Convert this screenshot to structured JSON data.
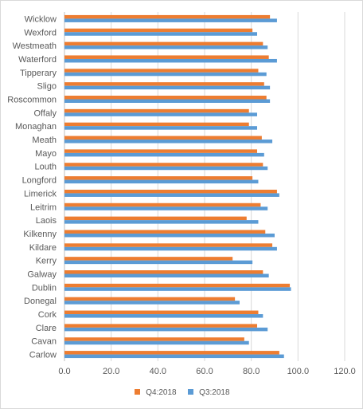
{
  "chart_data": {
    "type": "bar",
    "orientation": "horizontal",
    "categories": [
      "Wicklow",
      "Wexford",
      "Westmeath",
      "Waterford",
      "Tipperary",
      "Sligo",
      "Roscommon",
      "Offaly",
      "Monaghan",
      "Meath",
      "Mayo",
      "Louth",
      "Longford",
      "Limerick",
      "Leitrim",
      "Laois",
      "Kilkenny",
      "Kildare",
      "Kerry",
      "Galway",
      "Dublin",
      "Donegal",
      "Cork",
      "Clare",
      "Cavan",
      "Carlow"
    ],
    "series": [
      {
        "name": "Q4:2018",
        "color": "#ED7D31",
        "values": [
          88.0,
          80.5,
          85.0,
          87.5,
          83.0,
          85.5,
          86.5,
          79.0,
          79.0,
          84.5,
          82.5,
          85.0,
          80.5,
          91.0,
          84.0,
          78.0,
          86.0,
          89.0,
          72.0,
          85.0,
          96.5,
          73.0,
          83.0,
          82.5,
          77.0,
          92.0
        ]
      },
      {
        "name": "Q3:2018",
        "color": "#5B9BD5",
        "values": [
          91.0,
          82.5,
          87.0,
          91.0,
          86.5,
          88.0,
          88.0,
          82.5,
          82.5,
          89.0,
          85.5,
          87.0,
          83.0,
          92.0,
          87.0,
          83.0,
          90.0,
          91.0,
          80.5,
          87.5,
          97.0,
          75.0,
          85.0,
          87.0,
          79.0,
          94.0
        ]
      }
    ],
    "xlim": [
      0,
      120
    ],
    "xticks": [
      "0.0",
      "20.0",
      "40.0",
      "60.0",
      "80.0",
      "100.0",
      "120.0"
    ],
    "grid": true,
    "legend_position": "bottom",
    "title": "",
    "xlabel": "",
    "ylabel": ""
  }
}
